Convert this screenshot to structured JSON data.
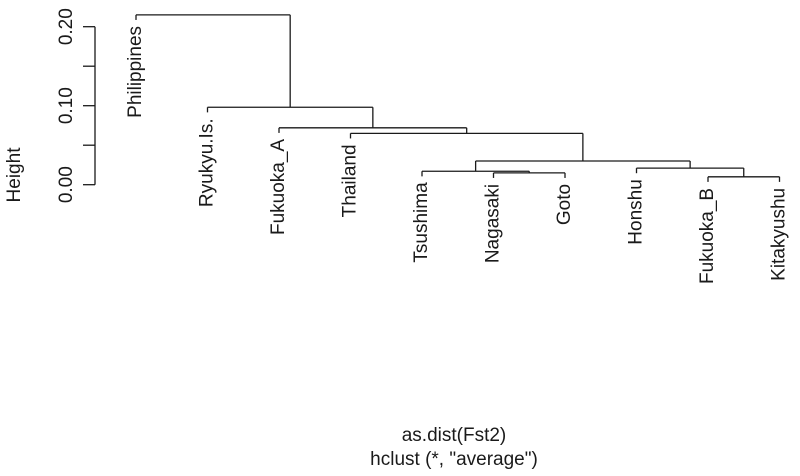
{
  "chart_data": {
    "type": "dendrogram",
    "ylabel": "Height",
    "xlabel": "as.dist(Fst2)",
    "sub": "hclust (*, \"average\")",
    "y_ticks": [
      0.0,
      0.1,
      0.2
    ],
    "y_tick_labels": [
      "0.00",
      "0.10",
      "0.20"
    ],
    "ylim": [
      0.0,
      0.22
    ],
    "leaves": [
      "Philippines",
      "Ryukyu.Is.",
      "Fukuoka_A",
      "Thailand",
      "Tsushima",
      "Nagasaki",
      "Goto",
      "Honshu",
      "Fukuoka_B",
      "Kitakyushu"
    ],
    "merges": [
      {
        "id": "n1",
        "children": [
          "Nagasaki",
          "Goto"
        ],
        "height": 0.015
      },
      {
        "id": "n2",
        "children": [
          "Fukuoka_B",
          "Kitakyushu"
        ],
        "height": 0.01
      },
      {
        "id": "n3",
        "children": [
          "Tsushima",
          "n1"
        ],
        "height": 0.017
      },
      {
        "id": "n4",
        "children": [
          "Honshu",
          "n2"
        ],
        "height": 0.021
      },
      {
        "id": "n5",
        "children": [
          "n3",
          "n4"
        ],
        "height": 0.03
      },
      {
        "id": "n6",
        "children": [
          "Thailand",
          "n5"
        ],
        "height": 0.065
      },
      {
        "id": "n7",
        "children": [
          "Fukuoka_A",
          "n6"
        ],
        "height": 0.072
      },
      {
        "id": "n8",
        "children": [
          "Ryukyu.Is.",
          "n7"
        ],
        "height": 0.098
      },
      {
        "id": "n9",
        "children": [
          "Philippines",
          "n8"
        ],
        "height": 0.215
      }
    ]
  }
}
